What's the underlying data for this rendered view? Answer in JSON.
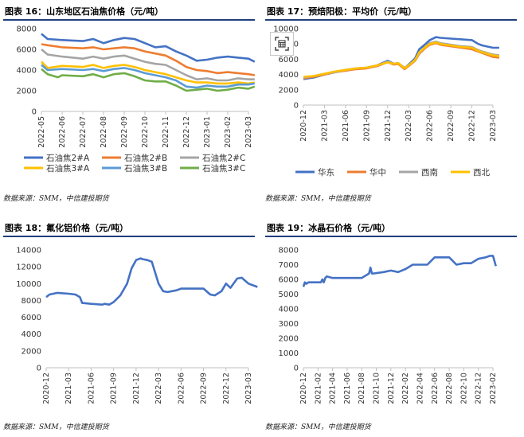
{
  "source_text": "数据来源：SMM，中信建投期货",
  "charts": [
    {
      "title": "图表 16：山东地区石油焦价格（元/吨）",
      "chart_data": {
        "type": "line",
        "title": "图表 16：山东地区石油焦价格（元/吨）",
        "xlabel": "",
        "ylabel": "",
        "ylim": [
          0,
          8000
        ],
        "yticks": [
          0,
          2000,
          4000,
          6000,
          8000
        ],
        "xticks": [
          "2022-05",
          "2022-06",
          "2022-07",
          "2022-08",
          "2022-09",
          "2022-10",
          "2022-11",
          "2022-12",
          "2023-01",
          "2023-02",
          "2023-03"
        ],
        "grid": false,
        "legend": "bottom",
        "series": [
          {
            "name": "石油焦2#A",
            "color": "#4472c4",
            "x": [
              0,
              0.3,
              1,
              2,
              2.5,
              3,
              3.5,
              4,
              4.5,
              5,
              5.5,
              6,
              6.5,
              7,
              7.5,
              8,
              8.5,
              9,
              9.5,
              10,
              10.3
            ],
            "values": [
              7500,
              7000,
              6900,
              6800,
              7000,
              6600,
              6900,
              7100,
              7000,
              6600,
              6200,
              6300,
              5800,
              5400,
              4900,
              5000,
              5200,
              5300,
              5200,
              5100,
              4800
            ]
          },
          {
            "name": "石油焦2#B",
            "color": "#ed7d31",
            "x": [
              0,
              0.3,
              1,
              2,
              2.5,
              3,
              3.5,
              4,
              4.5,
              5,
              5.5,
              6,
              6.5,
              7,
              7.5,
              8,
              8.5,
              9,
              9.5,
              10,
              10.3
            ],
            "values": [
              6500,
              6400,
              6200,
              6100,
              6200,
              6000,
              6100,
              6200,
              6100,
              5800,
              5600,
              5400,
              4900,
              4300,
              4000,
              3900,
              3700,
              3800,
              3700,
              3600,
              3500
            ]
          },
          {
            "name": "石油焦2#C",
            "color": "#a5a5a5",
            "x": [
              0,
              0.3,
              1,
              2,
              2.5,
              3,
              3.5,
              4,
              4.5,
              5,
              5.5,
              6,
              6.5,
              7,
              7.5,
              8,
              8.5,
              9,
              9.5,
              10,
              10.3
            ],
            "values": [
              6000,
              5500,
              5300,
              5100,
              5300,
              5100,
              5300,
              5400,
              5100,
              4800,
              4600,
              4500,
              4000,
              3500,
              3100,
              3200,
              3000,
              3000,
              3200,
              3100,
              3100
            ]
          },
          {
            "name": "石油焦3#A",
            "color": "#ffc000",
            "x": [
              0,
              0.3,
              1,
              2,
              2.5,
              3,
              3.5,
              4,
              4.5,
              5,
              5.5,
              6,
              6.5,
              7,
              7.5,
              8,
              8.5,
              9,
              9.5,
              10,
              10.3
            ],
            "values": [
              4800,
              4200,
              4400,
              4300,
              4500,
              4200,
              4400,
              4500,
              4300,
              4000,
              3800,
              3600,
              3300,
              3000,
              2800,
              2800,
              2700,
              2700,
              2800,
              2700,
              2800
            ]
          },
          {
            "name": "石油焦3#B",
            "color": "#5b9bd5",
            "x": [
              0,
              0.3,
              1,
              2,
              2.5,
              3,
              3.5,
              4,
              4.5,
              5,
              5.5,
              6,
              6.5,
              7,
              7.5,
              8,
              8.5,
              9,
              9.5,
              10,
              10.3
            ],
            "values": [
              4500,
              4000,
              4100,
              4000,
              4100,
              3900,
              4100,
              4200,
              4000,
              3700,
              3500,
              3300,
              3000,
              2400,
              2300,
              2500,
              2400,
              2400,
              2600,
              2600,
              2700
            ]
          },
          {
            "name": "石油焦3#C",
            "color": "#70ad47",
            "x": [
              0,
              0.3,
              0.8,
              1,
              2,
              2.5,
              3,
              3.5,
              4,
              4.5,
              5,
              5.5,
              6,
              6.5,
              7,
              7.5,
              8,
              8.5,
              9,
              9.5,
              10,
              10.3
            ],
            "values": [
              4100,
              3600,
              3300,
              3500,
              3400,
              3600,
              3300,
              3600,
              3700,
              3400,
              3000,
              2900,
              2900,
              2500,
              2000,
              2100,
              2200,
              2000,
              2100,
              2300,
              2200,
              2400
            ]
          }
        ]
      }
    },
    {
      "title": "图表 17：预焙阳极：平均价（元/吨）",
      "chart_data": {
        "type": "line",
        "title": "图表 17：预焙阳极：平均价（元/吨）",
        "xlabel": "",
        "ylabel": "",
        "ylim": [
          0,
          10000
        ],
        "yticks": [
          0,
          2000,
          4000,
          6000,
          8000,
          10000
        ],
        "xticks": [
          "2020-12",
          "2021-03",
          "2021-06",
          "2021-09",
          "2021-12",
          "2022-03",
          "2022-06",
          "2022-09",
          "2022-12",
          "2023-03"
        ],
        "grid": false,
        "legend": "bottom",
        "series": [
          {
            "name": "华东",
            "color": "#4472c4",
            "x": [
              0,
              0.5,
              1,
              1.5,
              2,
              2.5,
              3,
              3.5,
              4,
              4.3,
              4.5,
              4.8,
              5,
              5.3,
              5.5,
              5.8,
              6,
              6.3,
              6.5,
              7,
              7.5,
              8,
              8.3,
              8.5,
              9,
              9.3
            ],
            "values": [
              3400,
              3600,
              4000,
              4300,
              4600,
              4800,
              4900,
              5200,
              5800,
              5400,
              5500,
              4800,
              5300,
              6100,
              7300,
              8000,
              8500,
              8900,
              8800,
              8700,
              8600,
              8500,
              8000,
              7800,
              7500,
              7500
            ]
          },
          {
            "name": "华中",
            "color": "#ed7d31",
            "x": [
              0,
              0.5,
              1,
              1.5,
              2,
              2.5,
              3,
              3.5,
              4,
              4.3,
              4.5,
              4.8,
              5,
              5.3,
              5.5,
              5.8,
              6,
              6.3,
              6.5,
              7,
              7.5,
              8,
              8.3,
              8.5,
              9,
              9.3
            ],
            "values": [
              3500,
              3700,
              4000,
              4300,
              4500,
              4700,
              4800,
              5100,
              5600,
              5300,
              5400,
              4700,
              5100,
              5800,
              6700,
              7500,
              7900,
              8100,
              7900,
              7700,
              7500,
              7300,
              7000,
              6800,
              6300,
              6200
            ]
          },
          {
            "name": "西南",
            "color": "#a5a5a5",
            "x": [
              0,
              0.5,
              1,
              1.5,
              2,
              2.5,
              3,
              3.5,
              4,
              4.3,
              4.5,
              4.8,
              5,
              5.3,
              5.5,
              5.8,
              6,
              6.3,
              6.5,
              7,
              7.5,
              8,
              8.3,
              8.5,
              9,
              9.3
            ],
            "values": [
              3600,
              3800,
              4100,
              4300,
              4600,
              4800,
              4900,
              5200,
              5700,
              5400,
              5500,
              4900,
              5200,
              5900,
              6800,
              7700,
              8100,
              8300,
              8100,
              7900,
              7700,
              7600,
              7200,
              7000,
              6600,
              6500
            ]
          },
          {
            "name": "西北",
            "color": "#ffc000",
            "x": [
              0,
              0.5,
              1,
              1.5,
              2,
              2.5,
              3,
              3.5,
              4,
              4.3,
              4.5,
              4.8,
              5,
              5.3,
              5.5,
              5.8,
              6,
              6.3,
              6.5,
              7,
              7.5,
              8,
              8.3,
              8.5,
              9,
              9.3
            ],
            "values": [
              3700,
              3800,
              4100,
              4400,
              4600,
              4800,
              4900,
              5200,
              5600,
              5400,
              5500,
              4800,
              5200,
              5900,
              6900,
              7600,
              8000,
              8200,
              8000,
              7800,
              7600,
              7500,
              7100,
              6900,
              6500,
              6400
            ]
          }
        ]
      }
    },
    {
      "title": "图表 18：氟化铝价格（元/吨）",
      "chart_data": {
        "type": "line",
        "title": "图表 18：氟化铝价格（元/吨）",
        "xlabel": "",
        "ylabel": "",
        "ylim": [
          0,
          14000
        ],
        "yticks": [
          0,
          2000,
          4000,
          6000,
          8000,
          10000,
          12000,
          14000
        ],
        "xticks": [
          "2020-12",
          "2021-03",
          "2021-06",
          "2021-09",
          "2021-12",
          "2022-03",
          "2022-06",
          "2022-09",
          "2022-12",
          "2023-03"
        ],
        "grid": false,
        "legend": "none",
        "series": [
          {
            "name": "",
            "color": "#4472c4",
            "x": [
              0,
              0.15,
              0.5,
              1,
              1.3,
              1.5,
              1.6,
              2,
              2.5,
              2.6,
              2.8,
              3,
              3.3,
              3.6,
              3.8,
              4,
              4.2,
              4.3,
              4.5,
              4.7,
              5,
              5.2,
              5.4,
              5.8,
              6,
              6.5,
              7,
              7.3,
              7.5,
              7.8,
              8,
              8.2,
              8.5,
              8.7,
              9,
              9.2,
              9.4
            ],
            "values": [
              8400,
              8700,
              8900,
              8800,
              8700,
              8400,
              7700,
              7600,
              7500,
              7600,
              7500,
              7800,
              8600,
              10000,
              11800,
              12800,
              13000,
              12900,
              12800,
              12600,
              10000,
              9100,
              9000,
              9200,
              9400,
              9400,
              9400,
              8700,
              8600,
              9100,
              10000,
              9500,
              10600,
              10700,
              10000,
              9800,
              9600
            ]
          }
        ]
      }
    },
    {
      "title": "图表 19：冰晶石价格（元/吨）",
      "chart_data": {
        "type": "line",
        "title": "图表 19：冰晶石价格（元/吨）",
        "xlabel": "",
        "ylabel": "",
        "ylim": [
          0,
          8000
        ],
        "yticks": [
          0,
          1000,
          2000,
          3000,
          4000,
          5000,
          6000,
          7000,
          8000
        ],
        "xticks": [
          "2020-12",
          "2021-02",
          "2021-04",
          "2021-06",
          "2021-08",
          "2021-10",
          "2021-12",
          "2022-02",
          "2022-04",
          "2022-06",
          "2022-08",
          "2022-10",
          "2022-12",
          "2023-02"
        ],
        "grid": false,
        "legend": "none",
        "series": [
          {
            "name": "",
            "color": "#4472c4",
            "x": [
              0,
              0.1,
              0.2,
              0.35,
              0.5,
              1.2,
              1.3,
              1.4,
              1.5,
              1.6,
              2,
              2.5,
              3,
              3.5,
              4,
              4.5,
              4.6,
              4.7,
              4.8,
              5.5,
              6,
              6.5,
              7,
              7.5,
              8,
              8.5,
              9,
              9.5,
              10,
              10.5,
              11,
              11.5,
              12,
              12.5,
              12.8,
              13,
              13.2
            ],
            "values": [
              5500,
              5800,
              5700,
              5800,
              5800,
              5800,
              6000,
              5800,
              6100,
              6200,
              6100,
              6100,
              6100,
              6100,
              6100,
              6400,
              6800,
              6400,
              6400,
              6500,
              6600,
              6500,
              6700,
              7000,
              7000,
              7000,
              7500,
              7500,
              7500,
              7000,
              7100,
              7100,
              7400,
              7500,
              7600,
              7600,
              6900
            ]
          }
        ]
      }
    }
  ]
}
